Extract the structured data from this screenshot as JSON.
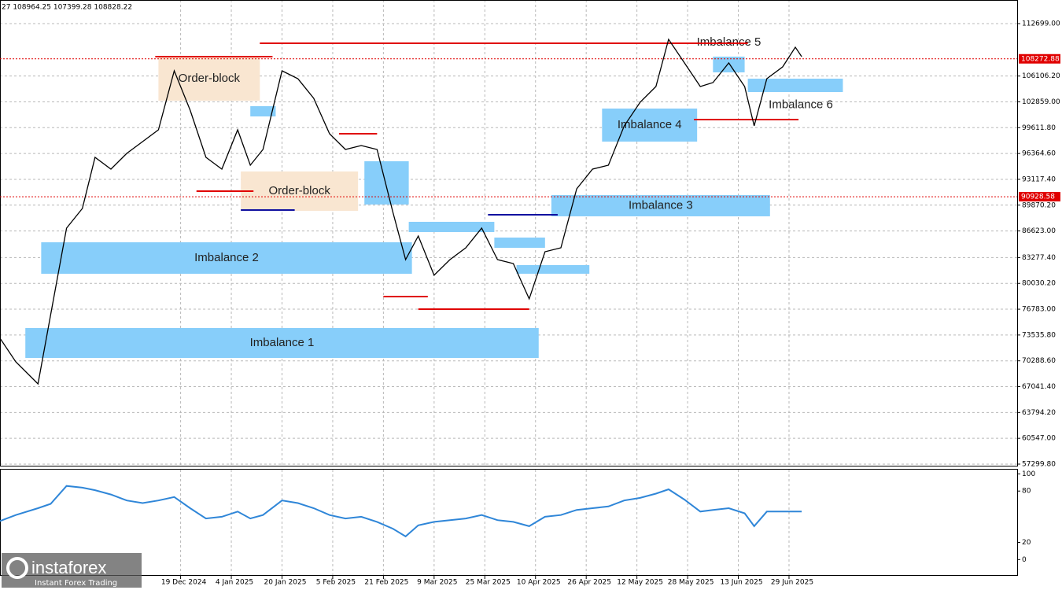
{
  "header": "27 108964.25 107399.28 108828.22",
  "brand": {
    "name": "instaforex",
    "tagline": "Instant Forex Trading"
  },
  "chart_data": [
    {
      "type": "line",
      "xlim": [
        "2024-10-23",
        "2025-09-09"
      ],
      "xticks": [
        "19 Dec 2024",
        "4 Jan 2025",
        "20 Jan 2025",
        "5 Feb 2025",
        "21 Feb 2025",
        "9 Mar 2025",
        "25 Mar 2025",
        "10 Apr 2025",
        "26 Apr 2025",
        "12 May 2025",
        "28 May 2025",
        "13 Jun 2025",
        "29 Jun 2025"
      ],
      "ylim": [
        57100,
        115670
      ],
      "yticks": [
        {
          "value": 112699,
          "label": "112699.00"
        },
        {
          "value": 106106.2,
          "label": "106106.20"
        },
        {
          "value": 102859,
          "label": "102859.00"
        },
        {
          "value": 99611.8,
          "label": "99611.80"
        },
        {
          "value": 96364.6,
          "label": "96364.60"
        },
        {
          "value": 93117.4,
          "label": "93117.40"
        },
        {
          "value": 89870.2,
          "label": "89870.20"
        },
        {
          "value": 86623,
          "label": "86623.00"
        },
        {
          "value": 83277.4,
          "label": "83277.40"
        },
        {
          "value": 80030.2,
          "label": "80030.20"
        },
        {
          "value": 76783,
          "label": "76783.00"
        },
        {
          "value": 73535.8,
          "label": "73535.80"
        },
        {
          "value": 70288.6,
          "label": "70288.60"
        },
        {
          "value": 67041.4,
          "label": "67041.40"
        },
        {
          "value": 63794.2,
          "label": "63794.20"
        },
        {
          "value": 60547,
          "label": "60547.00"
        },
        {
          "value": 57299.8,
          "label": "57299.80"
        }
      ],
      "grid": true,
      "x": [
        "2024-10-23",
        "2024-10-28",
        "2024-11-04",
        "2024-11-08",
        "2024-11-13",
        "2024-11-18",
        "2024-11-22",
        "2024-11-27",
        "2024-12-02",
        "2024-12-07",
        "2024-12-12",
        "2024-12-17",
        "2024-12-22",
        "2024-12-27",
        "2025-01-01",
        "2025-01-06",
        "2025-01-10",
        "2025-01-14",
        "2025-01-20",
        "2025-01-25",
        "2025-01-30",
        "2025-02-04",
        "2025-02-09",
        "2025-02-14",
        "2025-02-19",
        "2025-02-24",
        "2025-02-28",
        "2025-03-04",
        "2025-03-09",
        "2025-03-14",
        "2025-03-19",
        "2025-03-24",
        "2025-03-29",
        "2025-04-03",
        "2025-04-08",
        "2025-04-13",
        "2025-04-18",
        "2025-04-23",
        "2025-04-28",
        "2025-05-03",
        "2025-05-08",
        "2025-05-13",
        "2025-05-18",
        "2025-05-22",
        "2025-05-27",
        "2025-06-01",
        "2025-06-05",
        "2025-06-10",
        "2025-06-15",
        "2025-06-18",
        "2025-06-22",
        "2025-06-27",
        "2025-07-01",
        "2025-07-03"
      ],
      "series": [
        {
          "color": "#000000",
          "values": [
            73130,
            70160,
            67390,
            76100,
            86980,
            89450,
            95880,
            94400,
            96380,
            97860,
            99350,
            106770,
            101820,
            95880,
            94400,
            99350,
            94890,
            96870,
            106770,
            105780,
            103300,
            98850,
            96870,
            97370,
            96870,
            88960,
            83020,
            85990,
            81050,
            83020,
            84510,
            86980,
            83020,
            82530,
            78080,
            84010,
            84510,
            91930,
            94400,
            94890,
            99840,
            102810,
            104790,
            110720,
            107760,
            104790,
            105280,
            107760,
            104790,
            99840,
            105780,
            107260,
            109730,
            108550
          ]
        }
      ],
      "zones": [
        {
          "label": "Imbalance 1",
          "from": "2024-10-31",
          "to": "2025-04-11",
          "low": 70656,
          "high": 74416,
          "color": "#87cefa"
        },
        {
          "label": "Imbalance 2",
          "from": "2024-11-05",
          "to": "2025-03-02",
          "low": 81240,
          "high": 85200,
          "color": "#87cefa"
        },
        {
          "label": "Imbalance 3",
          "from": "2025-04-15",
          "to": "2025-06-23",
          "low": 88465,
          "high": 91135,
          "color": "#87cefa"
        },
        {
          "label": "Imbalance 4",
          "from": "2025-05-01",
          "to": "2025-05-31",
          "low": 97863,
          "high": 102018,
          "color": "#87cefa"
        },
        {
          "label": "Imbalance 5",
          "from": "2025-06-05",
          "to": "2025-06-15",
          "low": 106568,
          "high": 108547,
          "color": "#87cefa"
        },
        {
          "label": "Imbalance 6",
          "from": "2025-06-16",
          "to": "2025-07-16",
          "low": 104095,
          "high": 105777,
          "color": "#87cefa"
        },
        {
          "label": "Order-block",
          "from": "2024-12-12",
          "to": "2025-01-13",
          "low": 103007,
          "high": 108547,
          "color": "#f9e6d1"
        },
        {
          "label": "Order-block",
          "from": "2025-01-07",
          "to": "2025-02-13",
          "low": 89157,
          "high": 94103,
          "color": "#f9e6d1"
        },
        {
          "from": "2025-01-10",
          "to": "2025-01-18",
          "low": 101028,
          "high": 102314,
          "color": "#87cefa"
        },
        {
          "from": "2025-02-15",
          "to": "2025-03-01",
          "low": 89948,
          "high": 95389,
          "color": "#87cefa"
        },
        {
          "from": "2025-03-01",
          "to": "2025-03-28",
          "low": 86486,
          "high": 87772,
          "color": "#87cefa"
        },
        {
          "from": "2025-03-28",
          "to": "2025-04-13",
          "low": 84507,
          "high": 85793,
          "color": "#87cefa"
        },
        {
          "from": "2025-04-04",
          "to": "2025-04-27",
          "low": 81243,
          "high": 82331,
          "color": "#87cefa"
        }
      ],
      "levels": [
        {
          "price": 108547,
          "from": "2024-12-11",
          "to": "2025-01-17",
          "color": "#e00000"
        },
        {
          "price": 110229,
          "from": "2025-01-13",
          "to": "2025-06-16",
          "color": "#e00000"
        },
        {
          "price": 91630,
          "from": "2024-12-24",
          "to": "2025-01-11",
          "color": "#e00000"
        },
        {
          "price": 98852,
          "from": "2025-02-07",
          "to": "2025-02-19",
          "color": "#e00000"
        },
        {
          "price": 78374,
          "from": "2025-02-21",
          "to": "2025-03-07",
          "color": "#e00000"
        },
        {
          "price": 76791,
          "from": "2025-03-04",
          "to": "2025-04-08",
          "color": "#e00000"
        },
        {
          "price": 100633,
          "from": "2025-05-30",
          "to": "2025-07-02",
          "color": "#e00000"
        },
        {
          "price": 89256,
          "from": "2025-01-07",
          "to": "2025-01-24",
          "color": "#1010a0"
        },
        {
          "price": 88662,
          "from": "2025-03-26",
          "to": "2025-04-17",
          "color": "#1010a0"
        }
      ],
      "price_lines": [
        {
          "value": 108272.88,
          "color": "#e00000"
        },
        {
          "value": 90928.58,
          "color": "#e00000"
        }
      ]
    },
    {
      "type": "line",
      "ylim": [
        -19,
        105
      ],
      "yticks": [
        100,
        80,
        20,
        0
      ],
      "series": [
        {
          "color": "#2f86d8",
          "values": [
            45,
            52,
            60,
            65,
            86,
            84,
            81,
            76,
            69,
            66,
            69,
            73,
            60,
            48,
            50,
            56,
            48,
            52,
            69,
            66,
            60,
            52,
            48,
            50,
            44,
            36,
            27,
            40,
            44,
            46,
            48,
            52,
            46,
            44,
            39,
            50,
            52,
            58,
            60,
            62,
            69,
            72,
            77,
            82,
            70,
            56,
            58,
            60,
            54,
            39,
            56,
            56,
            56,
            56
          ]
        }
      ]
    }
  ]
}
